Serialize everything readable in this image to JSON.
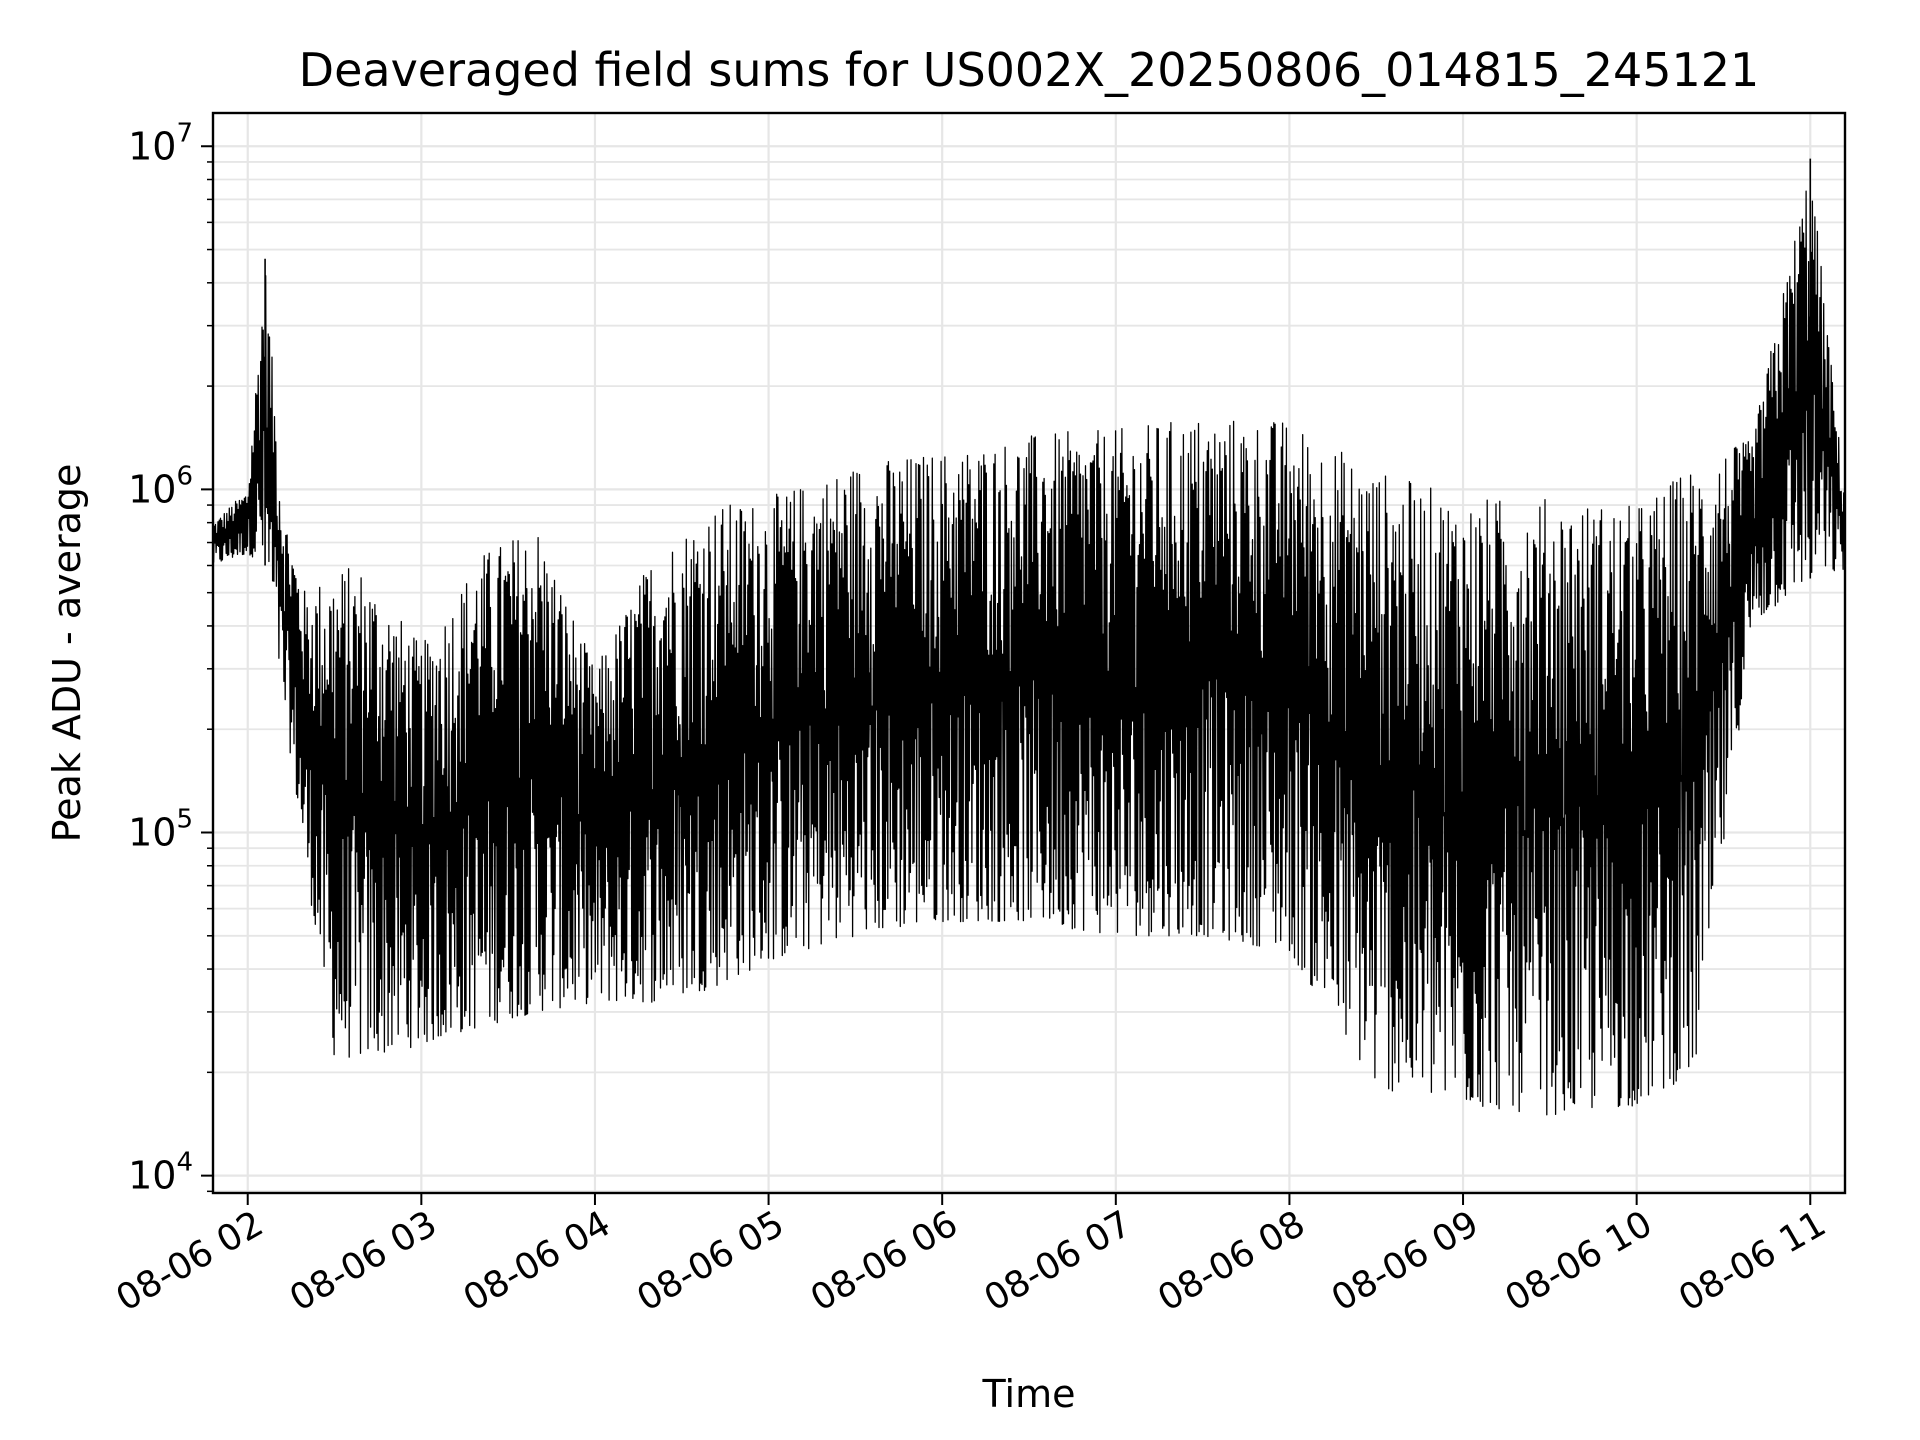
{
  "chart_data": {
    "type": "line",
    "title": "Deaveraged field sums for US002X_20250806_014815_245121",
    "xlabel": "Time",
    "ylabel": "Peak ADU - average",
    "y_scale": "log",
    "ylim": [
      8900,
      12500000
    ],
    "xlim": [
      "08-06 01:48",
      "08-06 11:12"
    ],
    "grid": true,
    "line_color": "#000000",
    "grid_color": "#e6e6e6",
    "x_ticks": [
      "08-06 02",
      "08-06 03",
      "08-06 04",
      "08-06 05",
      "08-06 06",
      "08-06 07",
      "08-06 08",
      "08-06 09",
      "08-06 10",
      "08-06 11"
    ],
    "y_ticks": [
      {
        "base": "10",
        "exp": "4",
        "value": 10000
      },
      {
        "base": "10",
        "exp": "5",
        "value": 100000
      },
      {
        "base": "10",
        "exp": "6",
        "value": 1000000
      },
      {
        "base": "10",
        "exp": "7",
        "value": 10000000
      }
    ],
    "series": [
      {
        "x": [
          "08-06 01:48",
          "08-06 02:00",
          "08-06 02:06",
          "08-06 02:12",
          "08-06 02:20",
          "08-06 02:30",
          "08-06 02:40",
          "08-06 03:00",
          "08-06 03:20",
          "08-06 03:40",
          "08-06 04:00",
          "08-06 04:20",
          "08-06 04:40",
          "08-06 05:00",
          "08-06 05:30",
          "08-06 06:00",
          "08-06 06:30",
          "08-06 07:00",
          "08-06 07:30",
          "08-06 08:00",
          "08-06 08:30",
          "08-06 09:00",
          "08-06 09:30",
          "08-06 10:00",
          "08-06 10:20",
          "08-06 10:40",
          "08-06 11:00",
          "08-06 11:12"
        ],
        "upper": [
          800000,
          1000000,
          4700000,
          900000,
          500000,
          600000,
          600000,
          350000,
          650000,
          800000,
          300000,
          650000,
          900000,
          950000,
          1200000,
          1300000,
          1450000,
          1500000,
          1650000,
          1600000,
          1150000,
          950000,
          950000,
          900000,
          1200000,
          1400000,
          9200000,
          950000
        ],
        "lower": [
          600000,
          650000,
          600000,
          250000,
          80000,
          22000,
          22000,
          24000,
          27000,
          30000,
          32000,
          32000,
          35000,
          42000,
          50000,
          55000,
          55000,
          50000,
          50000,
          45000,
          18000,
          16000,
          15000,
          16000,
          20000,
          400000,
          550000,
          580000
        ]
      }
    ]
  }
}
